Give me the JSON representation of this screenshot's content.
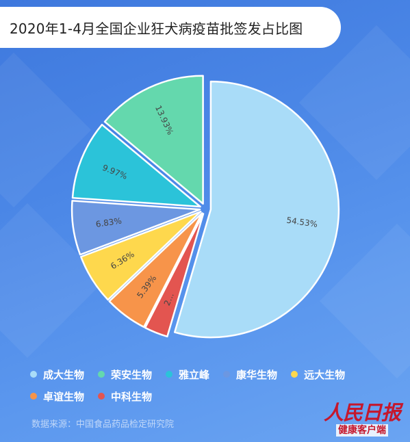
{
  "title": "2020年1-4月全国企业狂犬病疫苗批签发占比图",
  "source": "数据来源：中国食品药品检定研究院",
  "logo": {
    "main": "人民日报",
    "sub": "健康客户端"
  },
  "chart_data": {
    "type": "pie",
    "title": "2020年1-4月全国企业狂犬病疫苗批签发占比图",
    "unit": "%",
    "legend_position": "bottom",
    "slices": [
      {
        "name": "成大生物",
        "value": 54.53,
        "label": "54.53%",
        "color": "#a9dcf8"
      },
      {
        "name": "中科生物",
        "value": 2.96,
        "label": "2...",
        "color": "#e35550"
      },
      {
        "name": "卓谊生物",
        "value": 5.39,
        "label": "5.39%",
        "color": "#f7944a"
      },
      {
        "name": "远大生物",
        "value": 6.36,
        "label": "6.36%",
        "color": "#fed84d"
      },
      {
        "name": "康华生物",
        "value": 6.83,
        "label": "6.83%",
        "color": "#6c97e1"
      },
      {
        "name": "雅立峰",
        "value": 9.97,
        "label": "9.97%",
        "color": "#2bc3d9"
      },
      {
        "name": "荣安生物",
        "value": 13.93,
        "label": "13.93%",
        "color": "#64d8ad"
      }
    ],
    "legend_order": [
      "成大生物",
      "荣安生物",
      "雅立峰",
      "康华生物",
      "远大生物",
      "卓谊生物",
      "中科生物"
    ]
  }
}
